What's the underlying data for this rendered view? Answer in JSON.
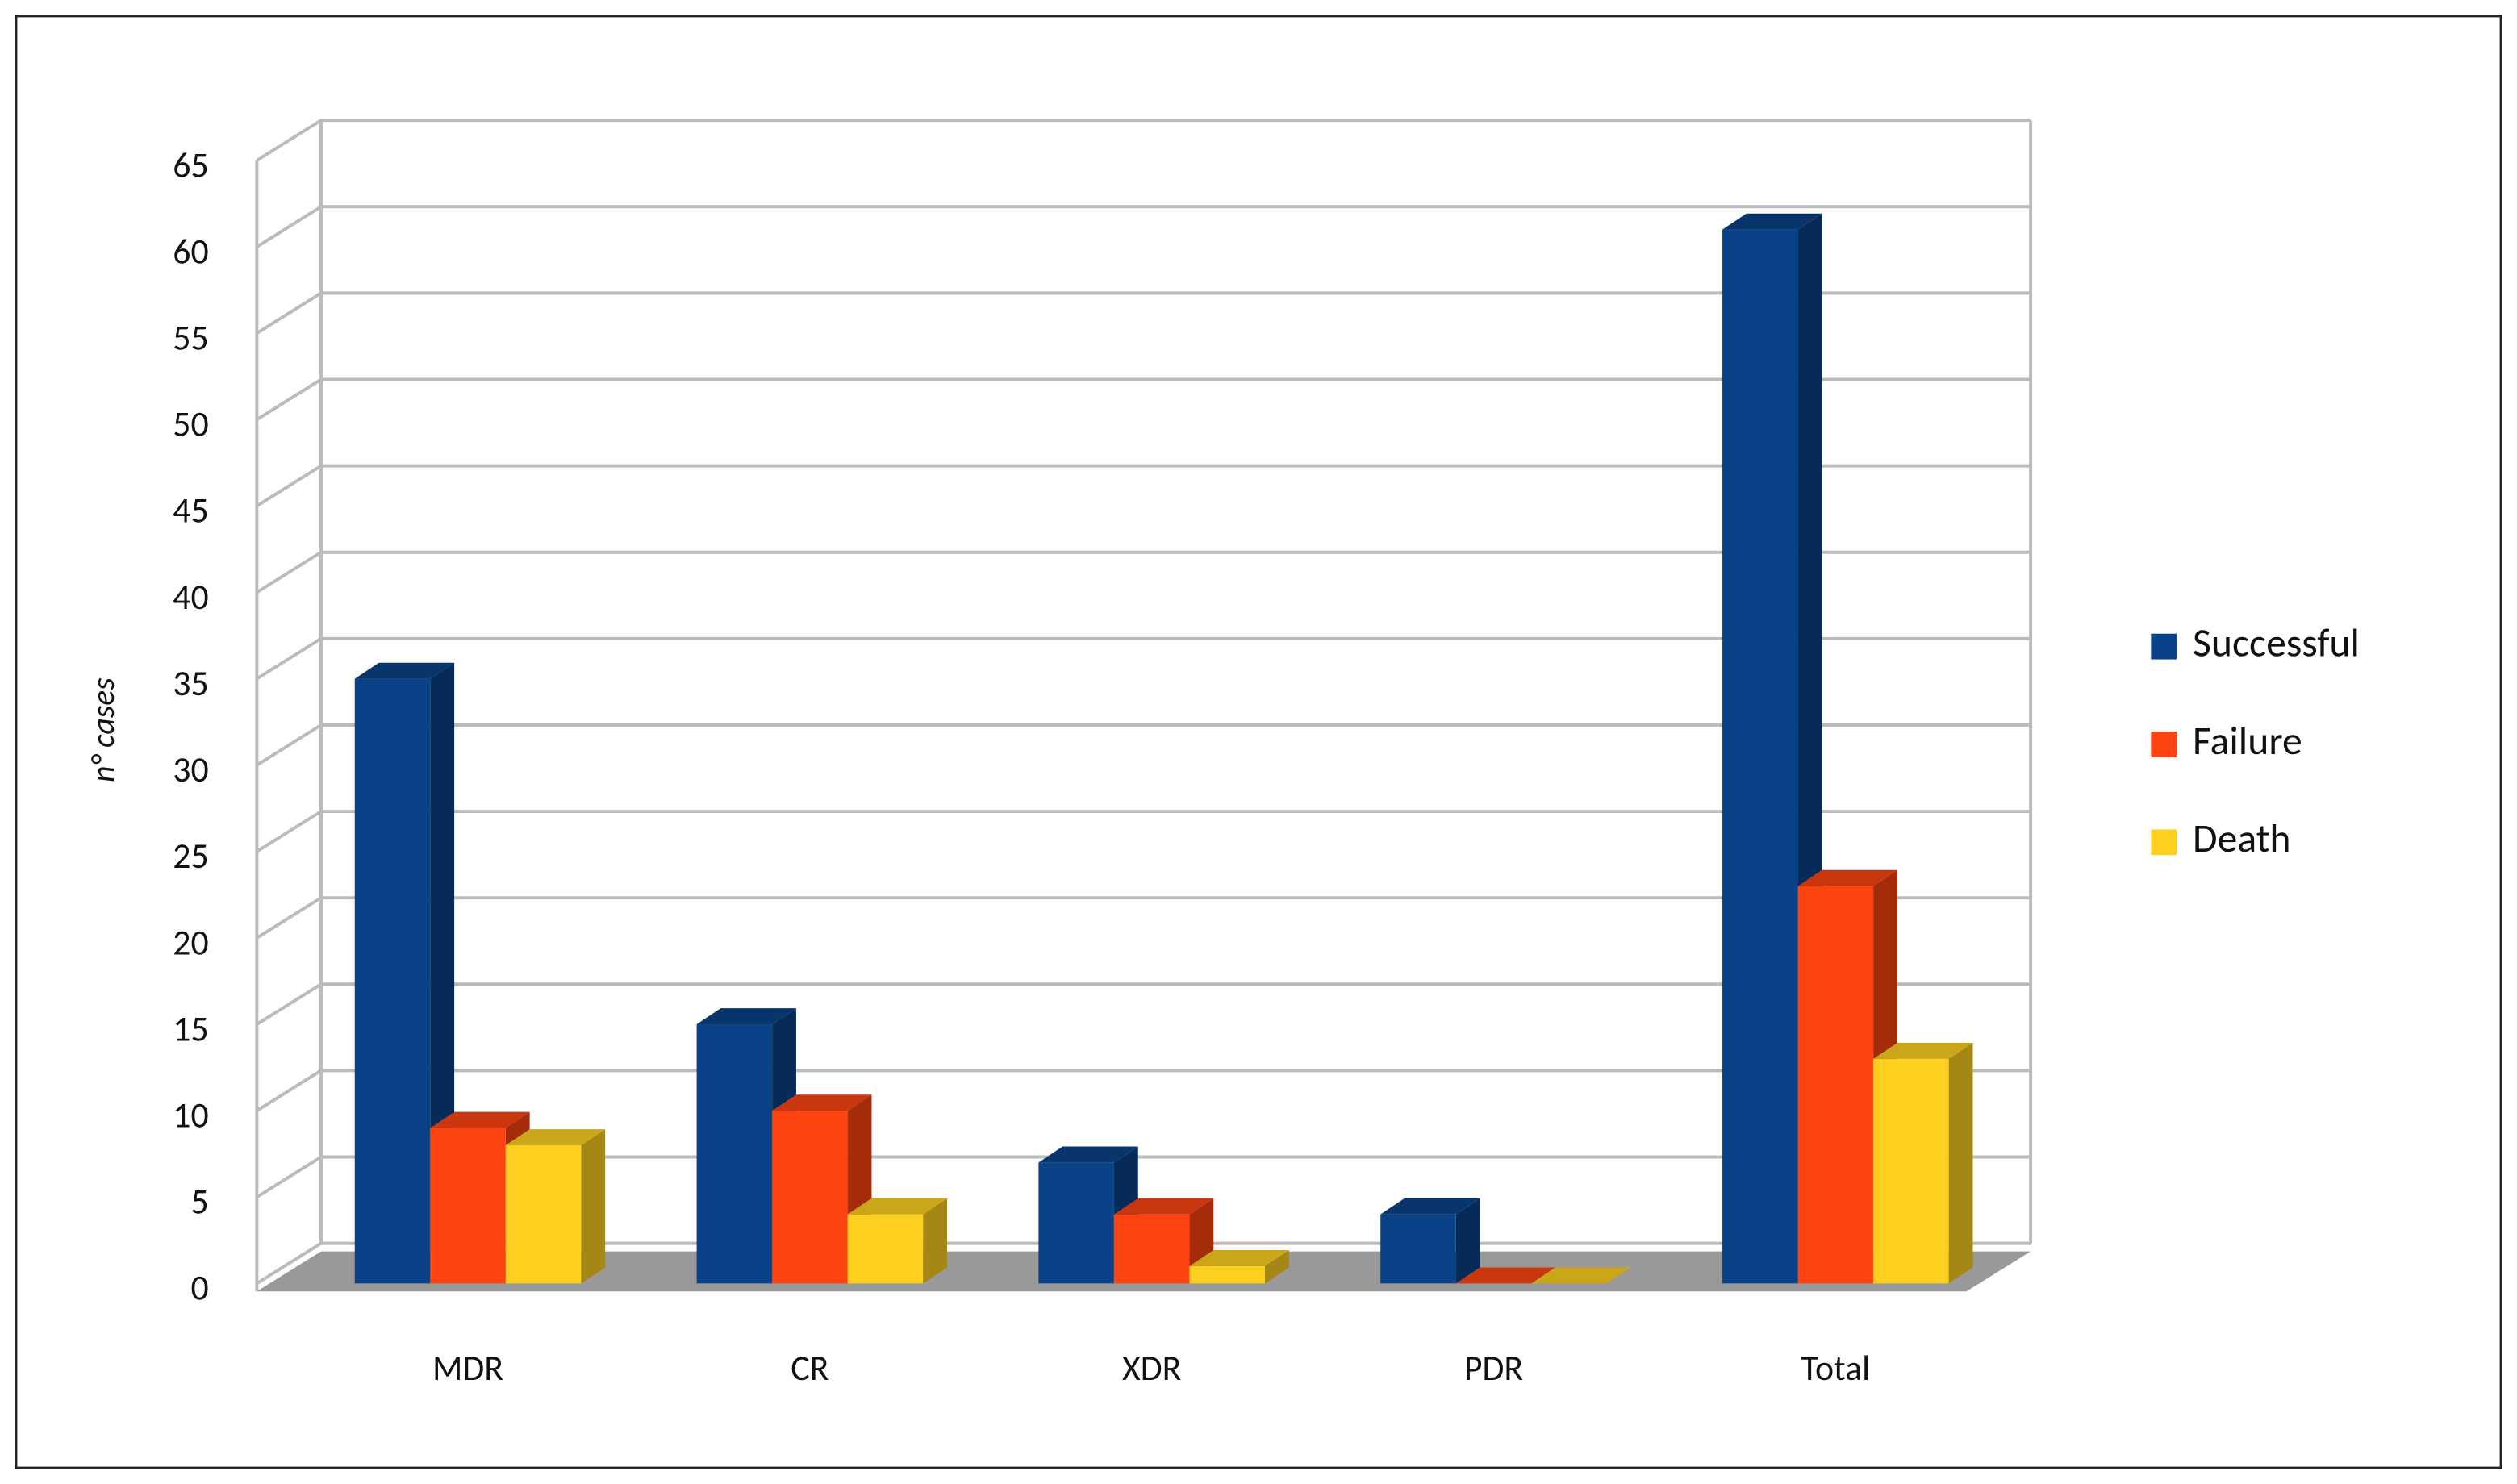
{
  "chart_data": {
    "type": "bar3d",
    "y_label": "n° cases",
    "categories": [
      "MDR",
      "CR",
      "XDR",
      "PDR",
      "Total"
    ],
    "series": [
      {
        "name": "Successful",
        "color": "#0a4287",
        "values": [
          35,
          15,
          7,
          4,
          61
        ]
      },
      {
        "name": "Failure",
        "color": "#fc4310",
        "values": [
          9,
          10,
          4,
          0,
          23
        ]
      },
      {
        "name": "Death",
        "color": "#fdd01f",
        "values": [
          8,
          4,
          1,
          0,
          13
        ]
      }
    ],
    "ylim": [
      0,
      65
    ],
    "yticks": [
      0,
      5,
      10,
      15,
      20,
      25,
      30,
      35,
      40,
      45,
      50,
      55,
      60,
      65
    ],
    "grid": true,
    "legend": "right"
  }
}
